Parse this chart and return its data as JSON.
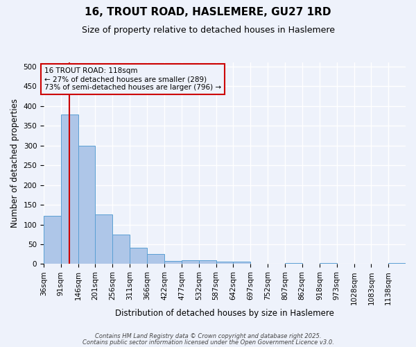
{
  "title1": "16, TROUT ROAD, HASLEMERE, GU27 1RD",
  "title2": "Size of property relative to detached houses in Haslemere",
  "xlabel": "Distribution of detached houses by size in Haslemere",
  "ylabel": "Number of detached properties",
  "bin_labels": [
    "36sqm",
    "91sqm",
    "146sqm",
    "201sqm",
    "256sqm",
    "311sqm",
    "366sqm",
    "422sqm",
    "477sqm",
    "532sqm",
    "587sqm",
    "642sqm",
    "697sqm",
    "752sqm",
    "807sqm",
    "862sqm",
    "918sqm",
    "973sqm",
    "1028sqm",
    "1083sqm",
    "1138sqm"
  ],
  "bin_edges": [
    36,
    91,
    146,
    201,
    256,
    311,
    366,
    422,
    477,
    532,
    587,
    642,
    697,
    752,
    807,
    862,
    918,
    973,
    1028,
    1083,
    1138,
    1193
  ],
  "bar_heights": [
    122,
    378,
    300,
    125,
    75,
    42,
    26,
    8,
    9,
    9,
    6,
    6,
    1,
    0,
    2,
    0,
    2,
    0,
    0,
    0,
    3
  ],
  "bar_color": "#aec6e8",
  "bar_edge_color": "#5a9fd4",
  "property_size": 118,
  "red_line_color": "#cc0000",
  "annotation_line1": "16 TROUT ROAD: 118sqm",
  "annotation_line2": "← 27% of detached houses are smaller (289)",
  "annotation_line3": "73% of semi-detached houses are larger (796) →",
  "ylim": [
    0,
    510
  ],
  "yticks": [
    0,
    50,
    100,
    150,
    200,
    250,
    300,
    350,
    400,
    450,
    500
  ],
  "footnote1": "Contains HM Land Registry data © Crown copyright and database right 2025.",
  "footnote2": "Contains public sector information licensed under the Open Government Licence v3.0.",
  "bg_color": "#eef2fb",
  "grid_color": "#ffffff",
  "title_fontsize": 11,
  "subtitle_fontsize": 9,
  "axis_label_fontsize": 8.5,
  "tick_fontsize": 7.5,
  "annot_fontsize": 7.5
}
